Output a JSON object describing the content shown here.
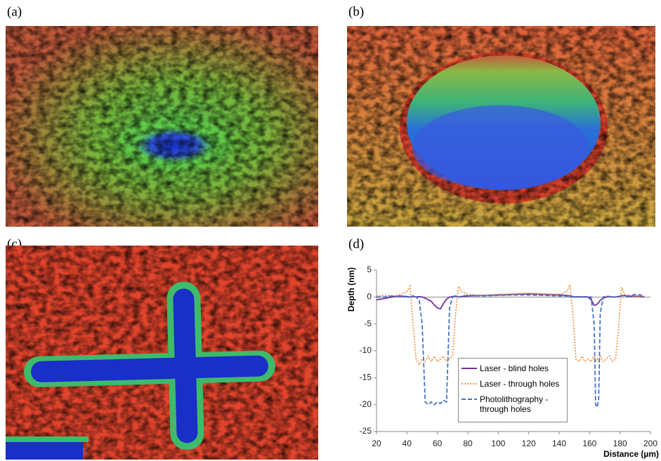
{
  "panels": [
    "(a)",
    "(b)",
    "(c)",
    "(d)"
  ],
  "chart_data": {
    "type": "line",
    "y_label": "Depth (nm)",
    "x_label": "Distance (µm)",
    "xlim": [
      20,
      200
    ],
    "xticks": [
      20,
      40,
      60,
      80,
      100,
      120,
      140,
      160,
      180,
      200
    ],
    "ylim": [
      -25,
      5
    ],
    "yticks": [
      -25,
      -20,
      -15,
      -10,
      -5,
      0,
      5
    ],
    "grid": false,
    "legend": "lower-center",
    "x": [
      20,
      25,
      30,
      35,
      40,
      42,
      44,
      46,
      48,
      50,
      52,
      54,
      56,
      58,
      60,
      62,
      64,
      66,
      68,
      70,
      72,
      74,
      76,
      80,
      90,
      100,
      110,
      120,
      130,
      140,
      145,
      147,
      149,
      151,
      153,
      155,
      157,
      159,
      161,
      163,
      164,
      165,
      166,
      167,
      169,
      171,
      173,
      175,
      177,
      179,
      181,
      183,
      185,
      190,
      196
    ],
    "series": [
      {
        "name": "Laser - blind holes",
        "color": "#7030a0",
        "dash": "solid",
        "values": [
          -0.5,
          -0.3,
          0,
          0.2,
          0.1,
          0,
          0.2,
          0,
          0.1,
          0,
          -0.2,
          -0.5,
          -0.8,
          -1.5,
          -2,
          -2.2,
          -1.2,
          -0.4,
          0,
          0.1,
          0.2,
          0,
          0.1,
          0.2,
          0.3,
          0.4,
          0.5,
          0.6,
          0.5,
          0.4,
          0.3,
          0.2,
          0.1,
          0,
          0.1,
          0,
          0,
          0,
          -0.5,
          -1.5,
          -1.5,
          -1.3,
          -1,
          -0.6,
          -0.2,
          0,
          0.1,
          0,
          0,
          0.1,
          0.2,
          0.3,
          0.1,
          0.2,
          0
        ]
      },
      {
        "name": "Laser - through holes",
        "color": "#f79646",
        "dash": "dotted",
        "values": [
          0.2,
          0.3,
          0.2,
          0.4,
          1,
          2,
          -5,
          -11.5,
          -12.5,
          -11.5,
          -12,
          -11,
          -12,
          -11,
          -12,
          -11.5,
          -11,
          -12,
          -11.5,
          -11,
          -3,
          2,
          1,
          0.5,
          0.3,
          0.5,
          0.6,
          0.7,
          0.6,
          0.5,
          1,
          2.3,
          -3,
          -11.5,
          -12,
          -11,
          -12,
          -11.5,
          -12,
          -11,
          -12,
          -11.5,
          -12,
          -11,
          -12,
          -11.5,
          -11,
          -12,
          -11.5,
          -6,
          1.8,
          0.5,
          0.3,
          0.2,
          0.2
        ]
      },
      {
        "name": "Photolithography - through holes",
        "color": "#4472c4",
        "dash": "dashed",
        "values": [
          0,
          0,
          0.2,
          0.1,
          0,
          0,
          0.1,
          0,
          -0.5,
          -5,
          -19.5,
          -20,
          -19.5,
          -20,
          -19.5,
          -19.8,
          -19.2,
          -19.5,
          -2,
          0,
          0.2,
          0,
          0.2,
          0.3,
          0.2,
          0.3,
          0.4,
          0.4,
          0.3,
          0.2,
          0.2,
          0.1,
          0,
          0.1,
          0,
          0,
          0.1,
          0,
          0,
          -5,
          -20,
          -20.5,
          -19,
          -3,
          0,
          0.2,
          0.1,
          0,
          0,
          0.1,
          0.3,
          0.2,
          0.2,
          0.5,
          0.3
        ]
      }
    ]
  }
}
